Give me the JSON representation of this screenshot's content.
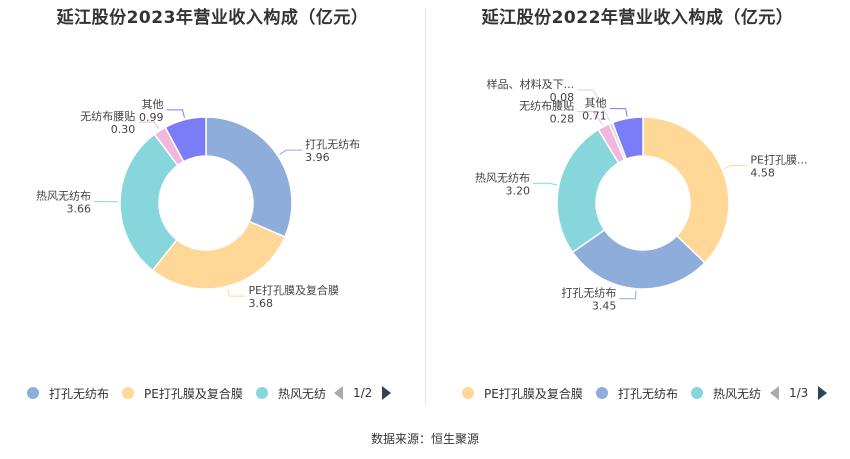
{
  "source": "数据来源：恒生聚源",
  "chart_data": [
    {
      "type": "pie",
      "donut": true,
      "title": "延江股份2023年营业收入构成（亿元）",
      "slices": [
        {
          "name": "打孔无纺布",
          "value": 3.96,
          "color": "#8fadda",
          "label_name": "打孔无纺布",
          "label_value": "3.96"
        },
        {
          "name": "PE打孔膜及复合膜",
          "value": 3.68,
          "color": "#ffd796",
          "label_name": "PE打孔膜及复合膜",
          "label_value": "3.68"
        },
        {
          "name": "热风无纺布",
          "value": 3.66,
          "color": "#86d6db",
          "label_name": "热风无纺布",
          "label_value": "3.66"
        },
        {
          "name": "无纺布腰贴",
          "value": 0.3,
          "color": "#f1b7dc",
          "label_name": "无纺布腰贴",
          "label_value": "0.30"
        },
        {
          "name": "其他",
          "value": 0.99,
          "color": "#7a7df7",
          "label_name": "其他",
          "label_value": "0.99"
        }
      ],
      "legend": {
        "items": [
          {
            "label": "打孔无纺布",
            "color": "#8fadda"
          },
          {
            "label": "PE打孔膜及复合膜",
            "color": "#ffd796"
          },
          {
            "label": "热风无纺",
            "color": "#86d6db"
          }
        ],
        "page": "1/2",
        "placement": "bottom"
      }
    },
    {
      "type": "pie",
      "donut": true,
      "title": "延江股份2022年营业收入构成（亿元）",
      "slices": [
        {
          "name": "PE打孔膜...",
          "value": 4.58,
          "color": "#ffd796",
          "label_name": "PE打孔膜...",
          "label_value": "4.58"
        },
        {
          "name": "打孔无纺布",
          "value": 3.45,
          "color": "#8fadda",
          "label_name": "打孔无纺布",
          "label_value": "3.45"
        },
        {
          "name": "热风无纺布",
          "value": 3.2,
          "color": "#86d6db",
          "label_name": "热风无纺布",
          "label_value": "3.20"
        },
        {
          "name": "无纺布腰贴",
          "value": 0.28,
          "color": "#f1b7dc",
          "label_name": "无纺布腰贴",
          "label_value": "0.28"
        },
        {
          "name": "样品、材料及下...",
          "value": 0.08,
          "color": "#d6d6d6",
          "label_name": "样品、材料及下...",
          "label_value": "0.08"
        },
        {
          "name": "其他",
          "value": 0.71,
          "color": "#7a7df7",
          "label_name": "其他",
          "label_value": "0.71"
        }
      ],
      "legend": {
        "items": [
          {
            "label": "PE打孔膜及复合膜",
            "color": "#ffd796"
          },
          {
            "label": "打孔无纺布",
            "color": "#8fadda"
          },
          {
            "label": "热风无纺",
            "color": "#86d6db"
          }
        ],
        "page": "1/3",
        "placement": "bottom"
      }
    }
  ]
}
